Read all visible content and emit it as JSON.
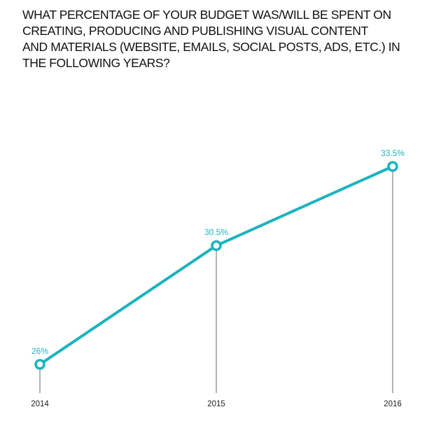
{
  "chart_data": {
    "type": "line",
    "title_lines": [
      "WHAT PERCENTAGE OF YOUR BUDGET WAS/WILL BE SPENT ON",
      "CREATING, PRODUCING AND PUBLISHING VISUAL CONTENT",
      "AND MATERIALS (WEBSITE, EMAILS, SOCIAL POSTS, ADS, ETC.) IN",
      "THE FOLLOWING YEARS?"
    ],
    "categories": [
      "2014",
      "2015",
      "2016"
    ],
    "values": [
      26,
      30.5,
      33.5
    ],
    "data_labels": [
      "26%",
      "30.5%",
      "33.5%"
    ],
    "xlabel": "",
    "ylabel": "",
    "ylim": [
      26,
      33.5
    ],
    "grid": false,
    "legend": "none",
    "colors": {
      "line": "#1bb3be",
      "dropline": "#888888",
      "text": "#111111"
    }
  }
}
